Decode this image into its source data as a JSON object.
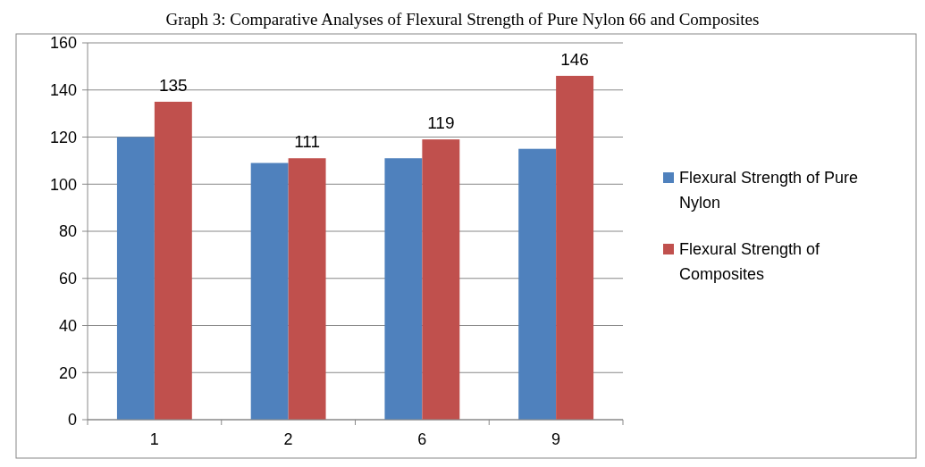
{
  "chart_data": {
    "type": "bar",
    "title": "Graph 3: Comparative Analyses of Flexural Strength of Pure Nylon 66 and Composites",
    "categories": [
      "1",
      "2",
      "6",
      "9"
    ],
    "series": [
      {
        "name": "Flexural Strength of Pure Nylon",
        "color": "#4f81bd",
        "values": [
          120,
          109,
          111,
          115
        ]
      },
      {
        "name": "Flexural Strength of Composites",
        "color": "#c0504d",
        "values": [
          135,
          111,
          119,
          146
        ],
        "value_labels": [
          "135",
          "111",
          "119",
          "146"
        ]
      }
    ],
    "ylim": [
      0,
      160
    ],
    "yticks": [
      0,
      20,
      40,
      60,
      80,
      100,
      120,
      140,
      160
    ],
    "grid": "y",
    "legend": "right"
  }
}
